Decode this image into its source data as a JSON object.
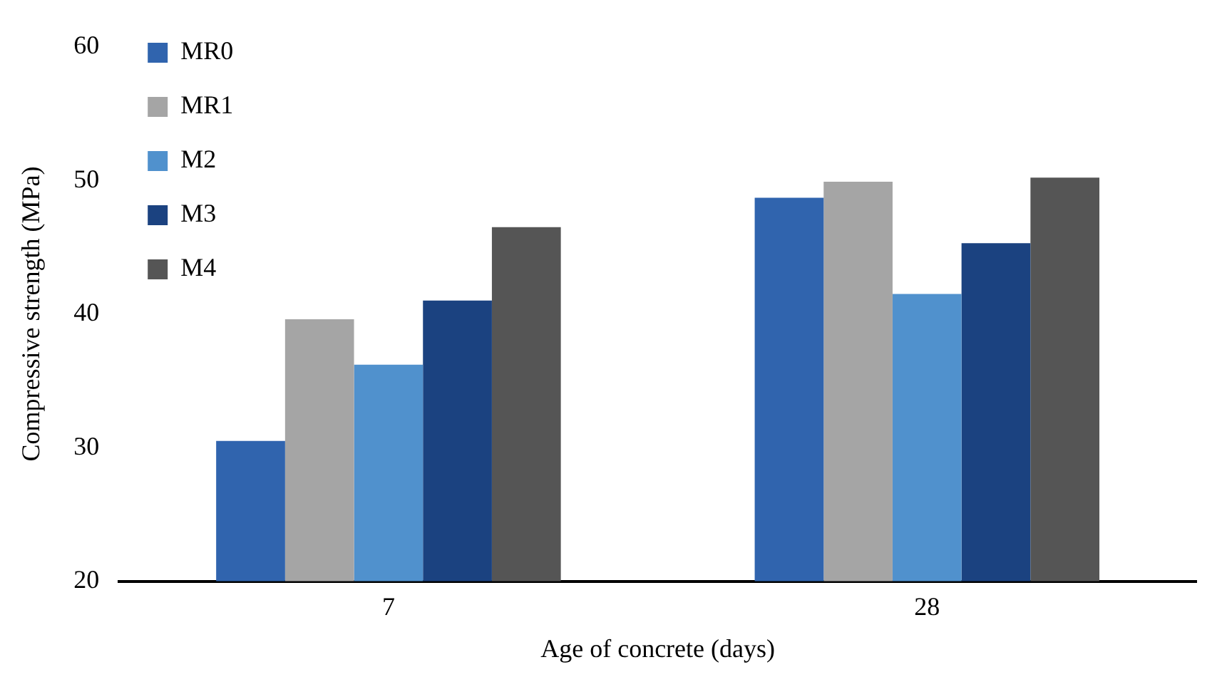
{
  "chart_data": {
    "type": "bar",
    "xlabel": "Age of concrete (days)",
    "ylabel": "Compressive strength (MPa)",
    "categories": [
      "7",
      "28"
    ],
    "series": [
      {
        "name": "MR0",
        "color": "#3064ae",
        "values": [
          30.5,
          48.7
        ]
      },
      {
        "name": "MR1",
        "color": "#a5a5a5",
        "values": [
          39.6,
          49.9
        ]
      },
      {
        "name": "M2",
        "color": "#5091cd",
        "values": [
          36.2,
          41.5
        ]
      },
      {
        "name": "M3",
        "color": "#1b4280",
        "values": [
          41.0,
          45.3
        ]
      },
      {
        "name": "M4",
        "color": "#555555",
        "values": [
          46.5,
          50.2
        ]
      }
    ],
    "ylim": [
      20,
      60
    ],
    "yticks": [
      20,
      30,
      40,
      50,
      60
    ],
    "grid": false,
    "legend": "top left"
  }
}
